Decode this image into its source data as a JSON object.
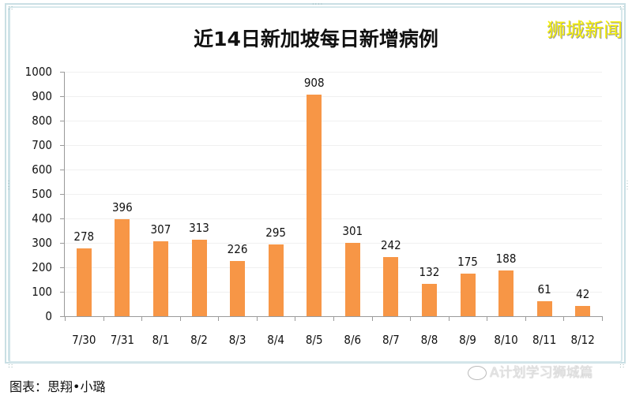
{
  "title": "近14日新加坡每日新增病例",
  "brand": "狮城新闻",
  "caption": "图表：思翔•小璐",
  "watermark": "A计划学习狮城篇",
  "colors": {
    "bar": "#f79646",
    "brand": "#f5ef0b",
    "frame": "#c9dfe4"
  },
  "chart_data": {
    "type": "bar",
    "title": "近14日新加坡每日新增病例",
    "xlabel": "",
    "ylabel": "",
    "ylim": [
      0,
      1000
    ],
    "yticks": [
      0,
      100,
      200,
      300,
      400,
      500,
      600,
      700,
      800,
      900,
      1000
    ],
    "grid": true,
    "legend": null,
    "categories": [
      "7/30",
      "7/31",
      "8/1",
      "8/2",
      "8/3",
      "8/4",
      "8/5",
      "8/6",
      "8/7",
      "8/8",
      "8/9",
      "8/10",
      "8/11",
      "8/12"
    ],
    "values": [
      278,
      396,
      307,
      313,
      226,
      295,
      908,
      301,
      242,
      132,
      175,
      188,
      61,
      42
    ],
    "data_labels": true
  }
}
